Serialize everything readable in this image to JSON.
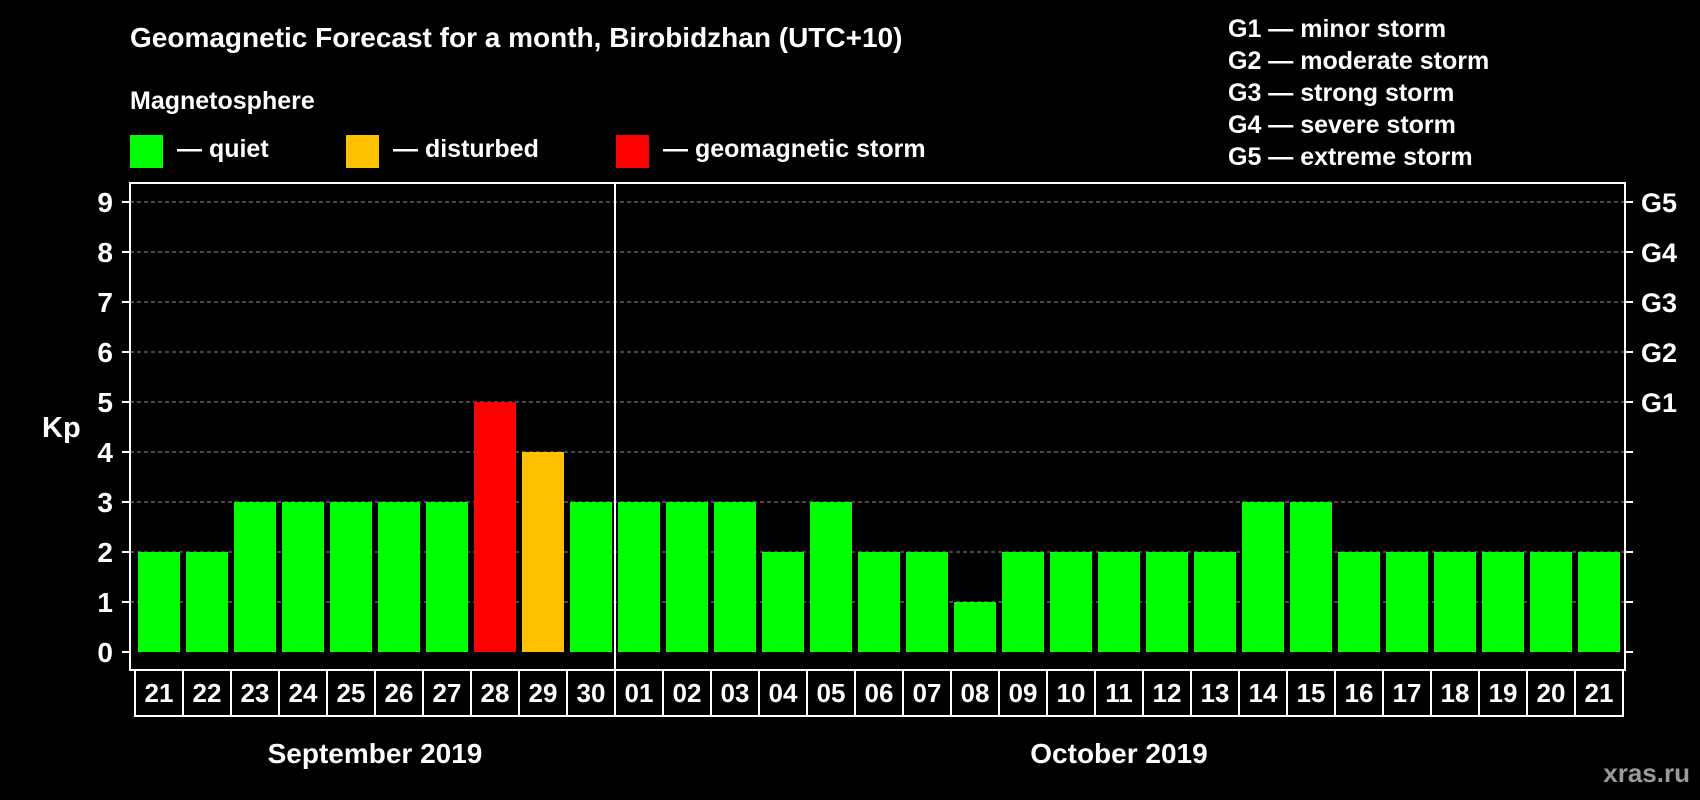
{
  "chart_data": {
    "type": "bar",
    "title": "Geomagnetic Forecast for a month, Birobidzhan (UTC+10)",
    "legend_title": "Magnetosphere",
    "legend": [
      {
        "key": "quiet",
        "label": "— quiet",
        "color": "#00ff00"
      },
      {
        "key": "disturbed",
        "label": "— disturbed",
        "color": "#ffc000"
      },
      {
        "key": "storm",
        "label": "— geomagnetic storm",
        "color": "#ff0000"
      }
    ],
    "storm_scale": [
      "G1 — minor storm",
      "G2 — moderate storm",
      "G3 — strong storm",
      "G4 — severe storm",
      "G5 — extreme storm"
    ],
    "ylabel": "Kp",
    "ylim": [
      0,
      9
    ],
    "yticks": [
      "0",
      "1",
      "2",
      "3",
      "4",
      "5",
      "6",
      "7",
      "8",
      "9"
    ],
    "right_ticks": [
      {
        "kp": 5,
        "label": "G1"
      },
      {
        "kp": 6,
        "label": "G2"
      },
      {
        "kp": 7,
        "label": "G3"
      },
      {
        "kp": 8,
        "label": "G4"
      },
      {
        "kp": 9,
        "label": "G5"
      }
    ],
    "categories": [
      "21",
      "22",
      "23",
      "24",
      "25",
      "26",
      "27",
      "28",
      "29",
      "30",
      "01",
      "02",
      "03",
      "04",
      "05",
      "06",
      "07",
      "08",
      "09",
      "10",
      "11",
      "12",
      "13",
      "14",
      "15",
      "16",
      "17",
      "18",
      "19",
      "20",
      "21"
    ],
    "values": [
      2,
      2,
      3,
      3,
      3,
      3,
      3,
      5,
      4,
      3,
      3,
      3,
      3,
      2,
      3,
      2,
      2,
      1,
      2,
      2,
      2,
      2,
      2,
      3,
      3,
      2,
      2,
      2,
      2,
      2,
      2
    ],
    "levels": [
      "quiet",
      "quiet",
      "quiet",
      "quiet",
      "quiet",
      "quiet",
      "quiet",
      "storm",
      "disturbed",
      "quiet",
      "quiet",
      "quiet",
      "quiet",
      "quiet",
      "quiet",
      "quiet",
      "quiet",
      "quiet",
      "quiet",
      "quiet",
      "quiet",
      "quiet",
      "quiet",
      "quiet",
      "quiet",
      "quiet",
      "quiet",
      "quiet",
      "quiet",
      "quiet",
      "quiet"
    ],
    "months": [
      {
        "label": "September 2019",
        "first_index": 0,
        "last_index": 9
      },
      {
        "label": "October 2019",
        "first_index": 10,
        "last_index": 30
      }
    ],
    "month_separator_after_index": 9
  },
  "watermark": "xras.ru"
}
